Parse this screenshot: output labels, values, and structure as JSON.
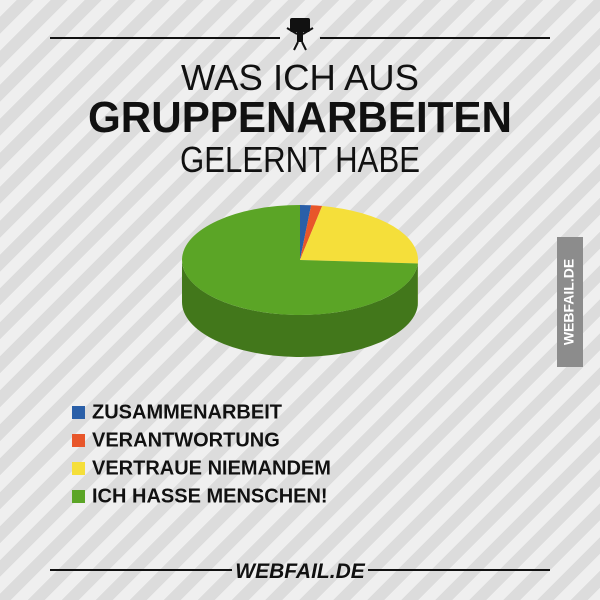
{
  "chart_data": {
    "type": "pie3d",
    "title": [
      "WAS ICH AUS",
      "GRUPPENARBEITEN",
      "GELERNT HABE"
    ],
    "categories": [
      "ZUSAMMENARBEIT",
      "VERANTWORTUNG",
      "VERTRAUE NIEMANDEM",
      "ICH HASSE MENSCHEN!"
    ],
    "values": [
      1.5,
      1.5,
      23,
      74
    ],
    "colors": [
      "#2a5fa8",
      "#e8562a",
      "#f5df3a",
      "#5ba526"
    ],
    "side_label": "WEBFAIL.DE",
    "footer": "WEBFAIL.DE"
  }
}
